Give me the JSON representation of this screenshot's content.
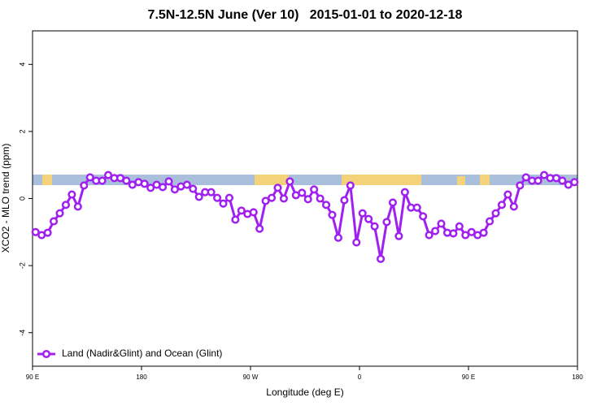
{
  "chart_data": {
    "type": "line",
    "title": "7.5N-12.5N June (Ver 10)   2015-01-01 to 2020-12-18",
    "x_label": "Longitude (deg E)",
    "y_label": "XCO2 - MLO trend (ppm)",
    "x": [
      92.5,
      97.5,
      102.5,
      107.5,
      112.5,
      117.5,
      122.5,
      127.5,
      132.5,
      137.5,
      142.5,
      147.5,
      152.5,
      157.5,
      162.5,
      167.5,
      172.5,
      177.5,
      182.5,
      187.5,
      192.5,
      197.5,
      202.5,
      207.5,
      212.5,
      217.5,
      222.5,
      227.5,
      232.5,
      237.5,
      242.5,
      247.5,
      252.5,
      257.5,
      262.5,
      267.5,
      272.5,
      277.5,
      282.5,
      287.5,
      292.5,
      297.5,
      302.5,
      307.5,
      312.5,
      317.5,
      322.5,
      327.5,
      332.5,
      337.5,
      342.5,
      347.5,
      352.5,
      357.5,
      362.5,
      367.5,
      372.5,
      377.5,
      382.5,
      387.5,
      392.5,
      397.5,
      402.5,
      407.5,
      412.5,
      417.5,
      422.5,
      427.5,
      432.5,
      437.5,
      442.5,
      447.5,
      452.5,
      457.5,
      462.5,
      467.5,
      472.5,
      477.5,
      482.5,
      487.5,
      492.5,
      497.5,
      502.5,
      507.5,
      512.5,
      517.5,
      522.5,
      527.5,
      532.5,
      537.5
    ],
    "series": [
      {
        "name": "Land (Nadir&Glint) and Ocean (Glint)",
        "color": "#a020f0",
        "values": [
          -1.0,
          -1.09,
          -1.02,
          -0.68,
          -0.44,
          -0.19,
          0.12,
          -0.24,
          0.39,
          0.63,
          0.53,
          0.53,
          0.7,
          0.61,
          0.61,
          0.53,
          0.41,
          0.49,
          0.44,
          0.32,
          0.41,
          0.34,
          0.51,
          0.27,
          0.36,
          0.41,
          0.29,
          0.05,
          0.19,
          0.19,
          0.02,
          -0.15,
          0.02,
          -0.63,
          -0.36,
          -0.46,
          -0.41,
          -0.9,
          -0.07,
          0.02,
          0.32,
          0.0,
          0.51,
          0.1,
          0.17,
          -0.02,
          0.27,
          0.0,
          -0.19,
          -0.49,
          -1.17,
          -0.05,
          0.39,
          -1.31,
          -0.44,
          -0.61,
          -0.83,
          -1.8,
          -0.7,
          -0.12,
          -1.12,
          0.19,
          -0.27,
          -0.27,
          -0.53,
          -1.09,
          -0.97,
          -0.75,
          -1.02,
          -1.04,
          -0.83,
          -1.09,
          -1.0,
          -1.09,
          -1.02,
          -0.68,
          -0.44,
          -0.19,
          0.12,
          -0.24,
          0.39,
          0.63,
          0.53,
          0.53,
          0.7,
          0.61,
          0.61,
          0.53,
          0.41,
          0.49
        ]
      }
    ],
    "xlim": [
      90,
      540
    ],
    "xticks": [
      {
        "value": 90,
        "label": "90 E"
      },
      180,
      {
        "value": 270,
        "label": "90 W"
      },
      {
        "value": 360,
        "label": "0"
      },
      {
        "value": 450,
        "label": "90 E"
      },
      {
        "value": 540,
        "label": "180"
      }
    ],
    "ylim": [
      -5,
      5
    ],
    "yticks": [
      -4,
      -2,
      0,
      2,
      4
    ],
    "legend": "bottom-left"
  }
}
